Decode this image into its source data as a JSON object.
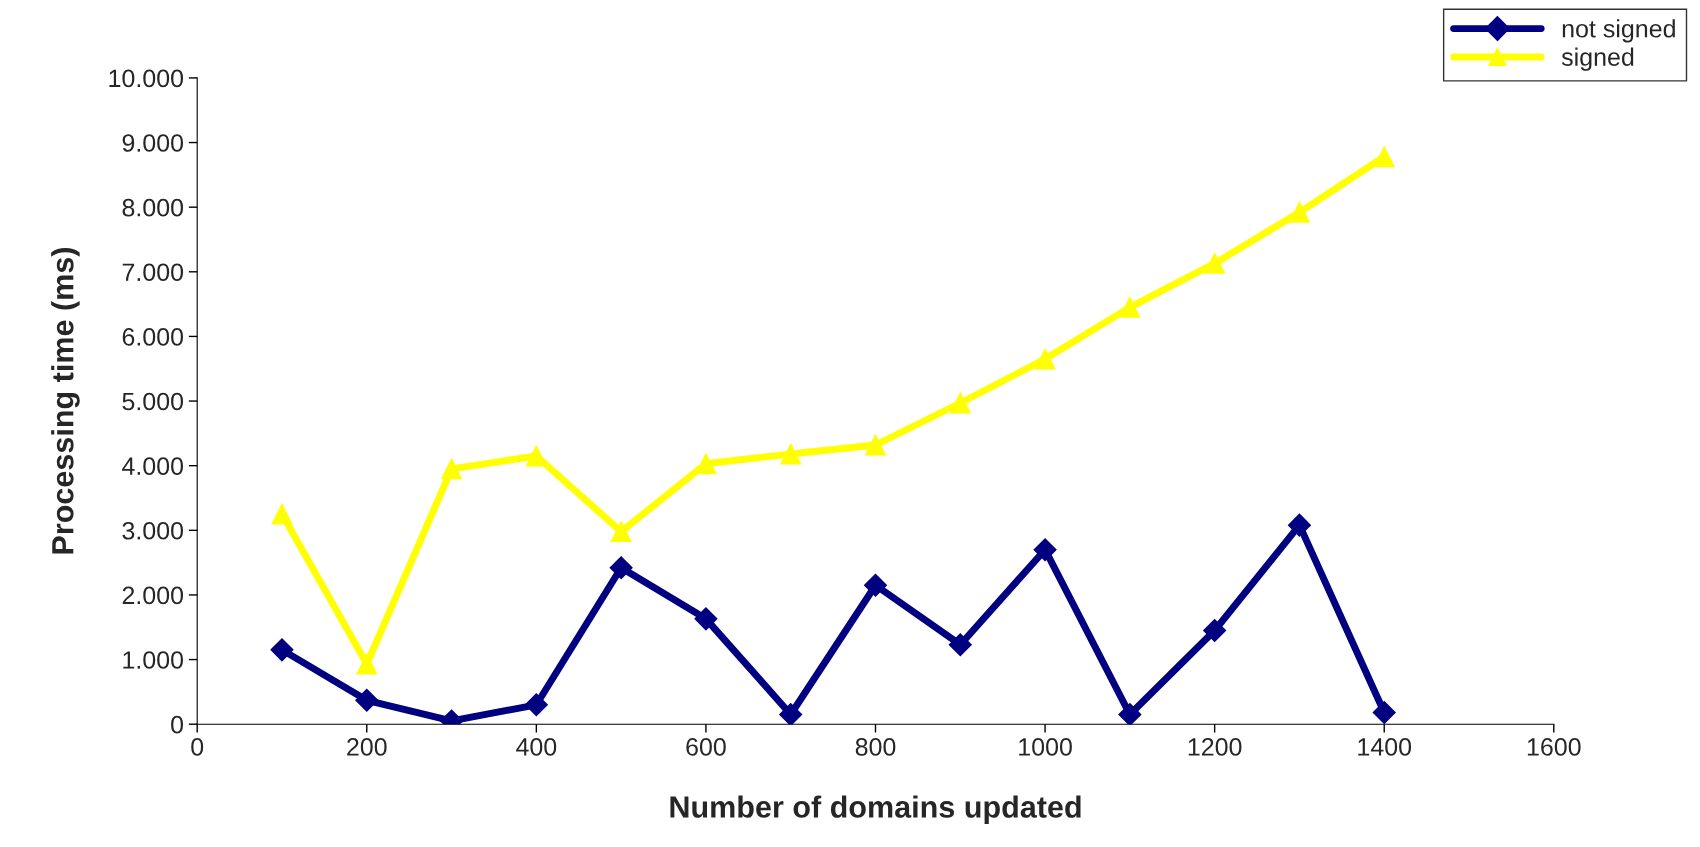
{
  "chart_data": {
    "type": "line",
    "xlabel": "Number of domains updated",
    "ylabel": "Processing time (ms)",
    "x": [
      100,
      200,
      300,
      400,
      500,
      600,
      700,
      800,
      900,
      1000,
      1100,
      1200,
      1300,
      1400
    ],
    "series": [
      {
        "name": "not signed",
        "color": "#000080",
        "marker": "diamond",
        "values": [
          1150,
          370,
          50,
          300,
          2420,
          1630,
          150,
          2150,
          1230,
          2700,
          150,
          1450,
          3080,
          180
        ]
      },
      {
        "name": "signed",
        "color": "#ffff00",
        "marker": "triangle",
        "values": [
          3250,
          930,
          3950,
          4150,
          2980,
          4030,
          4180,
          4320,
          4970,
          5650,
          6450,
          7130,
          7920,
          8780
        ]
      }
    ],
    "xlim": [
      0,
      1600
    ],
    "xticks": [
      0,
      200,
      400,
      600,
      800,
      1000,
      1200,
      1400,
      1600
    ],
    "ylim": [
      0,
      10000
    ],
    "yticks": [
      0,
      {
        "value": 1000,
        "label": "1.000"
      },
      {
        "value": 2000,
        "label": "2.000"
      },
      {
        "value": 3000,
        "label": "3.000"
      },
      {
        "value": 4000,
        "label": "4.000"
      },
      {
        "value": 5000,
        "label": "5.000"
      },
      {
        "value": 6000,
        "label": "6.000"
      },
      {
        "value": 7000,
        "label": "7.000"
      },
      {
        "value": 8000,
        "label": "8.000"
      },
      {
        "value": 9000,
        "label": "9.000"
      },
      {
        "value": 10000,
        "label": "10.000"
      }
    ],
    "grid": false,
    "legend": "top right",
    "line_style": "solid"
  }
}
